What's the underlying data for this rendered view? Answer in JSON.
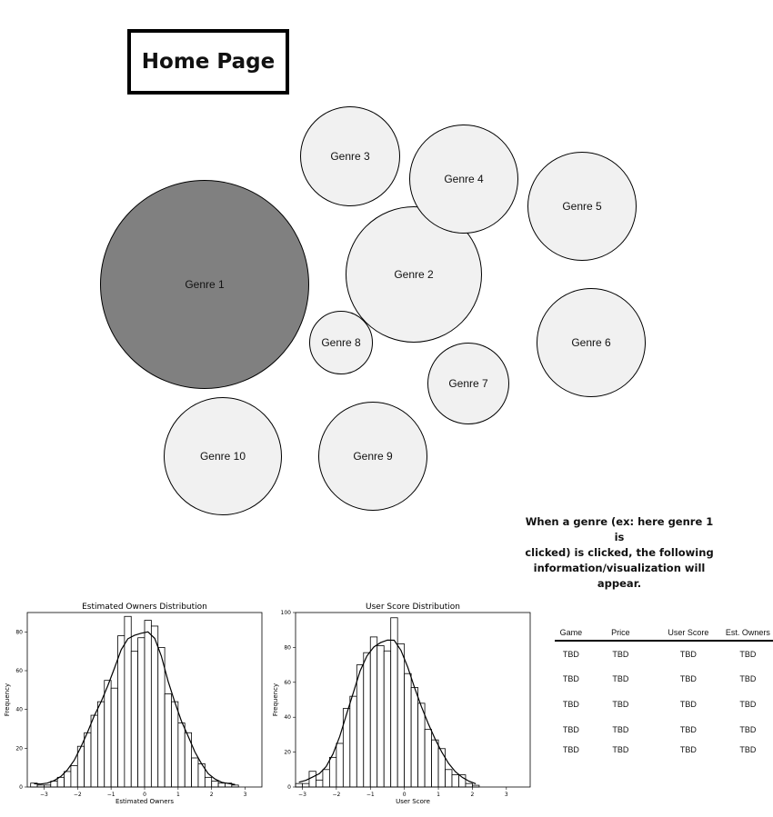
{
  "page_title": "Home Page",
  "genres": [
    {
      "label": "Genre 1",
      "selected": true
    },
    {
      "label": "Genre 2",
      "selected": false
    },
    {
      "label": "Genre 3",
      "selected": false
    },
    {
      "label": "Genre 4",
      "selected": false
    },
    {
      "label": "Genre 5",
      "selected": false
    },
    {
      "label": "Genre 6",
      "selected": false
    },
    {
      "label": "Genre 7",
      "selected": false
    },
    {
      "label": "Genre 8",
      "selected": false
    },
    {
      "label": "Genre 9",
      "selected": false
    },
    {
      "label": "Genre 10",
      "selected": false
    }
  ],
  "note": {
    "line1": "When a genre (ex: here genre 1 is",
    "line2": "clicked) is clicked, the following",
    "line3": "information/visualization will appear."
  },
  "colors": {
    "selected_bubble": "#808080",
    "bubble": "#f1f1f1"
  },
  "chart_data": [
    {
      "type": "bar",
      "title": "Estimated Owners Distribution",
      "xlabel": "Estimated Owners",
      "ylabel": "Frequency",
      "xlim": [
        -3.5,
        3.5
      ],
      "ylim": [
        0,
        90
      ],
      "xticks": [
        -3,
        -2,
        -1,
        0,
        1,
        2,
        3
      ],
      "yticks": [
        0,
        20,
        40,
        60,
        80
      ],
      "bin_start": -3.4,
      "bin_width": 0.2,
      "values": [
        2,
        1,
        1,
        3,
        5,
        8,
        11,
        21,
        28,
        37,
        44,
        55,
        51,
        78,
        88,
        70,
        77,
        86,
        83,
        72,
        48,
        44,
        33,
        28,
        15,
        12,
        5,
        3,
        2,
        2,
        1
      ],
      "kde": true
    },
    {
      "type": "bar",
      "title": "User Score Distribution",
      "xlabel": "User Score",
      "ylabel": "Frequency",
      "xlim": [
        -3.2,
        3.7
      ],
      "ylim": [
        0,
        100
      ],
      "xticks": [
        -3,
        -2,
        -1,
        0,
        1,
        2,
        3
      ],
      "yticks": [
        0,
        20,
        40,
        60,
        80,
        100
      ],
      "bin_start": -3.2,
      "bin_width": 0.2,
      "values": [
        2,
        2,
        9,
        4,
        10,
        17,
        25,
        45,
        52,
        70,
        77,
        86,
        81,
        78,
        97,
        82,
        65,
        57,
        48,
        33,
        27,
        22,
        10,
        7,
        7,
        2,
        1
      ],
      "kde": true
    }
  ],
  "table": {
    "headers": [
      "Game",
      "Price",
      "User Score",
      "Est. Owners"
    ],
    "rows": [
      [
        "TBD",
        "TBD",
        "TBD",
        "TBD"
      ],
      [
        "TBD",
        "TBD",
        "TBD",
        "TBD"
      ],
      [
        "TBD",
        "TBD",
        "TBD",
        "TBD"
      ],
      [
        "TBD",
        "TBD",
        "TBD",
        "TBD"
      ],
      [
        "TBD",
        "TBD",
        "TBD",
        "TBD"
      ]
    ]
  }
}
